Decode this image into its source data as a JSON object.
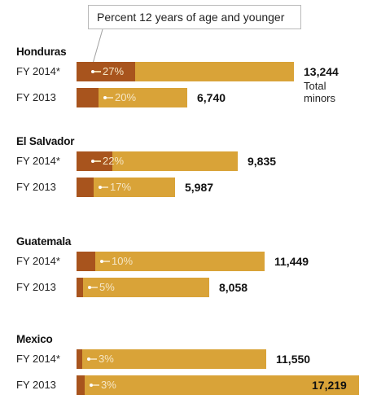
{
  "callout": "Percent 12 years of age and younger",
  "total_note": [
    "Total",
    "minors"
  ],
  "colors": {
    "total_bar": "#d9a338",
    "young_share": "#a8541d",
    "text": "#1a1a1a"
  },
  "chart_data": {
    "type": "bar",
    "orientation": "horizontal",
    "title": "",
    "series": [
      {
        "name": "Total minors",
        "color": "#d9a338"
      },
      {
        "name": "Percent 12 years of age and younger",
        "color": "#a8541d"
      }
    ],
    "groups": [
      {
        "country": "Honduras",
        "rows": [
          {
            "year": "FY 2014*",
            "total": 13244,
            "total_label": "13,244",
            "pct_young": 27,
            "pct_label": "27%"
          },
          {
            "year": "FY 2013",
            "total": 6740,
            "total_label": "6,740",
            "pct_young": 20,
            "pct_label": "20%"
          }
        ]
      },
      {
        "country": "El Salvador",
        "rows": [
          {
            "year": "FY 2014*",
            "total": 9835,
            "total_label": "9,835",
            "pct_young": 22,
            "pct_label": "22%"
          },
          {
            "year": "FY 2013",
            "total": 5987,
            "total_label": "5,987",
            "pct_young": 17,
            "pct_label": "17%"
          }
        ]
      },
      {
        "country": "Guatemala",
        "rows": [
          {
            "year": "FY 2014*",
            "total": 11449,
            "total_label": "11,449",
            "pct_young": 10,
            "pct_label": "10%"
          },
          {
            "year": "FY 2013",
            "total": 8058,
            "total_label": "8,058",
            "pct_young": 5,
            "pct_label": "5%"
          }
        ]
      },
      {
        "country": "Mexico",
        "rows": [
          {
            "year": "FY 2014*",
            "total": 11550,
            "total_label": "11,550",
            "pct_young": 3,
            "pct_label": "3%"
          },
          {
            "year": "FY 2013",
            "total": 17219,
            "total_label": "17,219",
            "pct_young": 3,
            "pct_label": "3%"
          }
        ]
      }
    ]
  }
}
